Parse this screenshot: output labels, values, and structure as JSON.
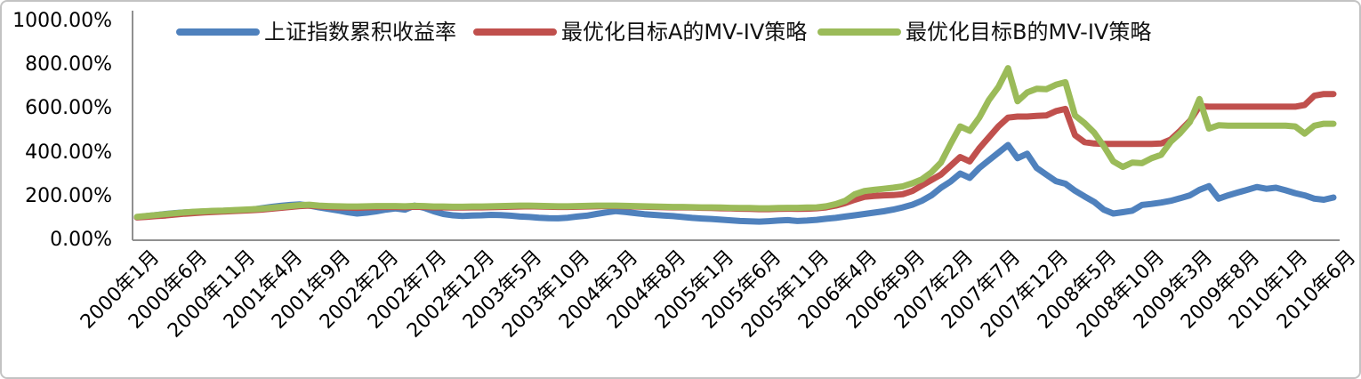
{
  "figure": {
    "title": ""
  },
  "colors": {
    "axis": "#909090",
    "frame": "#C3C3C3",
    "text": "#000000"
  },
  "chart_data": {
    "type": "line",
    "title": "",
    "xlabel": "",
    "ylabel": "",
    "y_unit": "percent",
    "ylim": [
      0,
      1000
    ],
    "grid": false,
    "legend_position": "top-center",
    "x_frequency": "monthly",
    "x_start": "2000年1月",
    "x_end": "2010年6月",
    "points_per_series": 126,
    "y_tick_labels": [
      "0.00%",
      "200.00%",
      "400.00%",
      "600.00%",
      "800.00%",
      "1000.00%"
    ],
    "y_tick_values": [
      0,
      200,
      400,
      600,
      800,
      1000
    ],
    "x_tick_every_n_points": 5,
    "x_tick_labels": [
      "2000年1月",
      "2000年6月",
      "2000年11月",
      "2001年4月",
      "2001年9月",
      "2002年2月",
      "2002年7月",
      "2002年12月",
      "2003年5月",
      "2003年10月",
      "2004年3月",
      "2004年8月",
      "2005年1月",
      "2005年6月",
      "2005年11月",
      "2006年4月",
      "2006年9月",
      "2007年2月",
      "2007年7月",
      "2007年12月",
      "2008年5月",
      "2008年10月",
      "2009年3月",
      "2009年8月",
      "2010年1月",
      "2010年6月"
    ],
    "series": [
      {
        "name": "上证指数累积收益率",
        "color": "#4F81BD",
        "values": [
          105,
          110,
          115,
          120,
          124,
          127,
          129,
          131,
          133,
          134,
          136,
          138,
          140,
          146,
          152,
          157,
          161,
          164,
          158,
          150,
          143,
          136,
          128,
          122,
          126,
          132,
          140,
          145,
          140,
          158,
          148,
          132,
          120,
          114,
          111,
          113,
          114,
          116,
          115,
          112,
          108,
          106,
          103,
          101,
          100,
          103,
          108,
          112,
          120,
          127,
          133,
          129,
          124,
          119,
          116,
          113,
          110,
          106,
          102,
          99,
          97,
          94,
          91,
          88,
          86,
          85,
          87,
          90,
          92,
          88,
          90,
          93,
          98,
          102,
          108,
          114,
          120,
          126,
          132,
          140,
          150,
          162,
          180,
          205,
          240,
          268,
          305,
          285,
          330,
          365,
          400,
          435,
          375,
          395,
          330,
          300,
          270,
          258,
          226,
          200,
          175,
          140,
          122,
          128,
          135,
          161,
          166,
          172,
          180,
          192,
          205,
          230,
          247,
          190,
          205,
          218,
          230,
          243,
          235,
          240,
          228,
          215,
          205,
          190,
          185,
          195
        ]
      },
      {
        "name": "最优化目标A的MV-IV策略",
        "color": "#C0504D",
        "values": [
          104,
          107,
          110,
          113,
          117,
          121,
          124,
          127,
          129,
          131,
          133,
          135,
          137,
          140,
          144,
          148,
          152,
          156,
          158,
          155,
          152,
          150,
          149,
          148,
          150,
          151,
          152,
          152,
          151,
          153,
          152,
          150,
          150,
          149,
          149,
          150,
          150,
          151,
          152,
          153,
          154,
          155,
          154,
          153,
          152,
          152,
          153,
          154,
          155,
          156,
          156,
          155,
          154,
          153,
          152,
          151,
          150,
          150,
          149,
          148,
          147,
          146,
          145,
          144,
          143,
          142,
          142,
          143,
          144,
          143,
          144,
          146,
          150,
          158,
          170,
          185,
          198,
          202,
          205,
          206,
          210,
          225,
          250,
          275,
          300,
          340,
          380,
          360,
          420,
          470,
          520,
          560,
          565,
          565,
          568,
          570,
          590,
          600,
          480,
          448,
          442,
          440,
          440,
          440,
          440,
          440,
          440,
          442,
          460,
          500,
          545,
          612,
          610,
          610,
          610,
          610,
          610,
          610,
          610,
          610,
          610,
          610,
          618,
          660,
          668,
          668
        ]
      },
      {
        "name": "最优化目标B的MV-IV策略",
        "color": "#9BBB59",
        "values": [
          107,
          111,
          115,
          119,
          123,
          127,
          130,
          132,
          134,
          135,
          137,
          139,
          141,
          144,
          148,
          152,
          156,
          160,
          162,
          158,
          156,
          155,
          154,
          154,
          155,
          156,
          156,
          156,
          155,
          157,
          156,
          154,
          154,
          153,
          153,
          154,
          154,
          155,
          156,
          157,
          158,
          158,
          157,
          156,
          155,
          155,
          156,
          157,
          158,
          158,
          158,
          157,
          156,
          155,
          154,
          153,
          152,
          152,
          151,
          150,
          150,
          149,
          148,
          147,
          147,
          146,
          146,
          147,
          148,
          148,
          149,
          150,
          155,
          165,
          180,
          210,
          225,
          230,
          235,
          240,
          246,
          260,
          278,
          310,
          355,
          440,
          520,
          500,
          560,
          640,
          700,
          786,
          635,
          675,
          692,
          690,
          710,
          722,
          570,
          535,
          492,
          430,
          360,
          335,
          355,
          352,
          375,
          390,
          450,
          490,
          540,
          645,
          510,
          525,
          523,
          523,
          523,
          523,
          523,
          523,
          523,
          520,
          487,
          523,
          532,
          532
        ]
      }
    ]
  },
  "legend_layout": {
    "item_lefts": [
      196,
      530,
      917
    ]
  }
}
